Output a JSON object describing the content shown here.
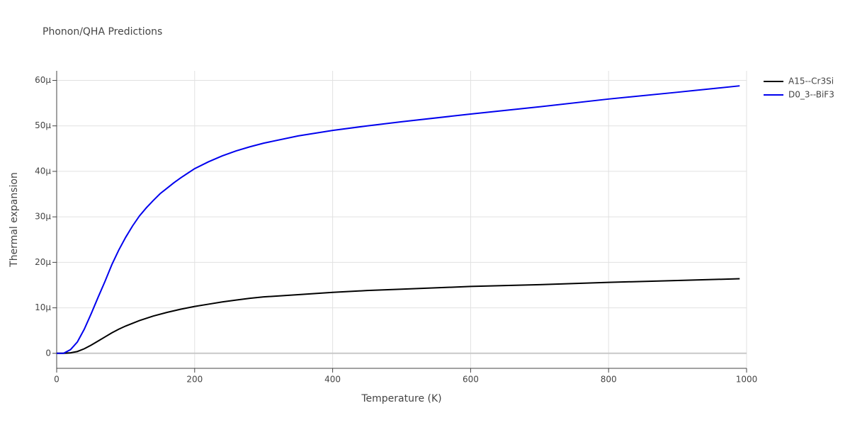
{
  "chart_data": {
    "type": "line",
    "title": "Phonon/QHA Predictions",
    "x_label": "Temperature (K)",
    "y_label": "Thermal expansion",
    "xlim": [
      0,
      1000
    ],
    "xticks": [
      0,
      200,
      400,
      600,
      800,
      1000
    ],
    "ylim": [
      -3.3,
      62.1
    ],
    "yticks": [
      0,
      {
        "value": 10,
        "label": "10µ"
      },
      {
        "value": 20,
        "label": "20µ"
      },
      {
        "value": 30,
        "label": "30µ"
      },
      {
        "value": 40,
        "label": "40µ"
      },
      {
        "value": 50,
        "label": "50µ"
      },
      {
        "value": 60,
        "label": "60µ"
      }
    ],
    "grid": true,
    "legend": "outside-right",
    "series": [
      {
        "name": "A15--Cr3Si",
        "color": "#000000",
        "x": [
          0,
          10,
          20,
          30,
          40,
          50,
          60,
          70,
          80,
          90,
          100,
          120,
          140,
          160,
          180,
          200,
          220,
          240,
          260,
          280,
          300,
          350,
          400,
          450,
          500,
          600,
          700,
          800,
          900,
          990
        ],
        "values": [
          0,
          0,
          0.1,
          0.4,
          1.0,
          1.8,
          2.7,
          3.6,
          4.5,
          5.3,
          6.0,
          7.2,
          8.2,
          9.0,
          9.7,
          10.3,
          10.8,
          11.3,
          11.7,
          12.1,
          12.4,
          12.9,
          13.4,
          13.8,
          14.1,
          14.7,
          15.1,
          15.6,
          16.0,
          16.4
        ]
      },
      {
        "name": "D0_3--BiF3",
        "color": "#0000ee",
        "x": [
          0,
          10,
          20,
          30,
          40,
          50,
          60,
          70,
          80,
          90,
          100,
          110,
          120,
          130,
          140,
          150,
          160,
          170,
          180,
          190,
          200,
          220,
          240,
          260,
          280,
          300,
          350,
          400,
          450,
          500,
          600,
          700,
          800,
          900,
          990
        ],
        "values": [
          0,
          0,
          0.8,
          2.5,
          5.3,
          8.7,
          12.3,
          15.8,
          19.5,
          22.7,
          25.5,
          28.0,
          30.2,
          32.0,
          33.6,
          35.1,
          36.3,
          37.5,
          38.6,
          39.6,
          40.6,
          42.1,
          43.4,
          44.5,
          45.4,
          46.2,
          47.8,
          49.0,
          50.0,
          50.9,
          52.6,
          54.2,
          55.9,
          57.4,
          58.8
        ]
      }
    ]
  }
}
